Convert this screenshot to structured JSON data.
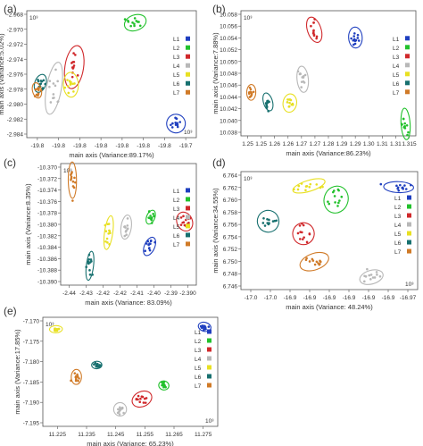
{
  "chart_data": [
    {
      "type": "scatter",
      "panel_label": "(a)",
      "xlabel": "main axis (Variance:89.17%)",
      "ylabel": "main axis (Variance:5.02%)",
      "x_ticks": [
        "-19.8",
        "-19.8",
        "-19.8",
        "-19.8",
        "-19.8",
        "-19.8",
        "-19.8",
        "-19.7"
      ],
      "y_ticks": [
        "-2.968",
        "-2.970",
        "-2.972",
        "-2.974",
        "-2.976",
        "-2.978",
        "-2.980",
        "-2.982",
        "-2.984"
      ],
      "xlim": [
        -19.84,
        -19.74
      ],
      "ylim": [
        -2.9855,
        -2.9675
      ],
      "multiplier_top": "10³",
      "multiplier_bottom": "10³",
      "legend": [
        "L1",
        "L2",
        "L3",
        "L4",
        "L5",
        "L6",
        "L7"
      ],
      "series": [
        {
          "name": "L1",
          "center": [
            -19.752,
            -2.9835
          ],
          "spread": [
            0.0025,
            0.0006
          ]
        },
        {
          "name": "L2",
          "center": [
            -19.776,
            -2.9692
          ],
          "spread": [
            0.003,
            0.0005
          ]
        },
        {
          "name": "L3",
          "center": [
            -19.812,
            -2.9755
          ],
          "spread": [
            0.0025,
            0.0014
          ]
        },
        {
          "name": "L4",
          "center": [
            -19.824,
            -2.9785
          ],
          "spread": [
            0.002,
            0.0017
          ]
        },
        {
          "name": "L5",
          "center": [
            -19.814,
            -2.978
          ],
          "spread": [
            0.002,
            0.0008
          ]
        },
        {
          "name": "L6",
          "center": [
            -19.832,
            -2.9778
          ],
          "spread": [
            0.0015,
            0.0006
          ]
        },
        {
          "name": "L7",
          "center": [
            -19.834,
            -2.9788
          ],
          "spread": [
            0.0012,
            0.0005
          ]
        }
      ]
    },
    {
      "type": "scatter",
      "panel_label": "(b)",
      "xlabel": "main axis (Variance:86.23%)",
      "ylabel": "main axis (Variance:7.88%)",
      "x_ticks": [
        "1.25",
        "1.25",
        "1.26",
        "1.26",
        "1.27",
        "1.27",
        "1.28",
        "1.29",
        "1.29",
        "1.30",
        "1.31",
        "1.31",
        "1.315"
      ],
      "y_ticks": [
        "10.058",
        "10.056",
        "10.054",
        "10.052",
        "10.050",
        "10.048",
        "10.046",
        "10.044",
        "10.042",
        "10.040",
        "10.038"
      ],
      "xlim": [
        1.248,
        1.316
      ],
      "ylim": [
        10.0375,
        10.0585
      ],
      "multiplier_top": "10³",
      "legend": [
        "L1",
        "L2",
        "L3",
        "L4",
        "L5",
        "L6",
        "L7"
      ],
      "series": [
        {
          "name": "L1",
          "center": [
            1.2925,
            10.054
          ],
          "spread": [
            0.0012,
            0.0008
          ]
        },
        {
          "name": "L2",
          "center": [
            1.312,
            10.0395
          ],
          "spread": [
            0.0008,
            0.0012
          ]
        },
        {
          "name": "L3",
          "center": [
            1.2765,
            10.0553
          ],
          "spread": [
            0.0012,
            0.001
          ]
        },
        {
          "name": "L4",
          "center": [
            1.272,
            10.047
          ],
          "spread": [
            0.001,
            0.001
          ]
        },
        {
          "name": "L5",
          "center": [
            1.267,
            10.043
          ],
          "spread": [
            0.0012,
            0.0007
          ]
        },
        {
          "name": "L6",
          "center": [
            1.2585,
            10.0432
          ],
          "spread": [
            0.0008,
            0.0007
          ]
        },
        {
          "name": "L7",
          "center": [
            1.252,
            10.0448
          ],
          "spread": [
            0.0008,
            0.0006
          ]
        }
      ]
    },
    {
      "type": "scatter",
      "panel_label": "(c)",
      "xlabel": "main axis (Variance: 83.09%)",
      "ylabel": "main axis (Variance:8.35%)",
      "x_ticks": [
        "-2.44",
        "-2.43",
        "-2.42",
        "-2.42",
        "-2.41",
        "-2.40",
        "-2.39",
        "-2.390"
      ],
      "y_ticks": [
        "-10.370",
        "-10.372",
        "-10.374",
        "-10.376",
        "-10.378",
        "-10.380",
        "-10.382",
        "-10.384",
        "-10.386",
        "-10.388",
        "-10.390"
      ],
      "xlim": [
        -2.446,
        -2.388
      ],
      "ylim": [
        -10.3915,
        -10.3695
      ],
      "multiplier_top": "10³",
      "legend": [
        "L1",
        "L2",
        "L3",
        "L4",
        "L5",
        "L6",
        "L7"
      ],
      "series": [
        {
          "name": "L1",
          "center": [
            -2.408,
            -10.3845
          ],
          "spread": [
            0.001,
            0.0008
          ]
        },
        {
          "name": "L2",
          "center": [
            -2.4075,
            -10.3792
          ],
          "spread": [
            0.0008,
            0.0006
          ]
        },
        {
          "name": "L3",
          "center": [
            -2.393,
            -10.38
          ],
          "spread": [
            0.0015,
            0.0008
          ]
        },
        {
          "name": "L4",
          "center": [
            -2.418,
            -10.381
          ],
          "spread": [
            0.001,
            0.001
          ]
        },
        {
          "name": "L5",
          "center": [
            -2.4255,
            -10.382
          ],
          "spread": [
            0.0008,
            0.0014
          ]
        },
        {
          "name": "L6",
          "center": [
            -2.4335,
            -10.388
          ],
          "spread": [
            0.0007,
            0.0012
          ]
        },
        {
          "name": "L7",
          "center": [
            -2.441,
            -10.3725
          ],
          "spread": [
            0.0008,
            0.0015
          ]
        }
      ]
    },
    {
      "type": "scatter",
      "panel_label": "(d)",
      "xlabel": "main axis (Variance: 48.24%)",
      "ylabel": "main axis (Variance:34.55%)",
      "x_ticks": [
        "-17.0",
        "-17.0",
        "-16.9",
        "-16.9",
        "-16.9",
        "-16.9",
        "-16.9",
        "-16.9",
        "-16.97"
      ],
      "y_ticks": [
        "6.764",
        "6.762",
        "6.760",
        "6.758",
        "6.756",
        "6.754",
        "6.752",
        "6.750",
        "6.748",
        "6.746"
      ],
      "xlim": [
        -17.02,
        -16.955
      ],
      "ylim": [
        6.7455,
        6.7645
      ],
      "multiplier_top": "10³",
      "multiplier_bottom": "10³",
      "legend": [
        "L1",
        "L2",
        "L3",
        "L4",
        "L5",
        "L6",
        "L7"
      ],
      "series": [
        {
          "name": "L1",
          "center": [
            -16.962,
            6.762
          ],
          "spread": [
            0.0025,
            0.0004
          ]
        },
        {
          "name": "L2",
          "center": [
            -16.985,
            6.76
          ],
          "spread": [
            0.002,
            0.001
          ]
        },
        {
          "name": "L3",
          "center": [
            -16.997,
            6.7545
          ],
          "spread": [
            0.0018,
            0.0008
          ]
        },
        {
          "name": "L4",
          "center": [
            -16.972,
            6.7475
          ],
          "spread": [
            0.002,
            0.0005
          ]
        },
        {
          "name": "L5",
          "center": [
            -16.995,
            6.7622
          ],
          "spread": [
            0.0028,
            0.0004
          ]
        },
        {
          "name": "L6",
          "center": [
            -17.01,
            6.7565
          ],
          "spread": [
            0.0018,
            0.0008
          ]
        },
        {
          "name": "L7",
          "center": [
            -16.993,
            6.75
          ],
          "spread": [
            0.0025,
            0.0006
          ]
        }
      ]
    },
    {
      "type": "scatter",
      "panel_label": "(e)",
      "xlabel": "main axis (Variance: 65.23%)",
      "ylabel": "main axis (Variance:17.85%)",
      "x_ticks": [
        "11.225",
        "11.235",
        "11.245",
        "11.255",
        "11.265",
        "11.275"
      ],
      "y_ticks": [
        "-7.170",
        "-7.175",
        "-7.180",
        "-7.185",
        "-7.190",
        "-7.195"
      ],
      "xlim": [
        11.221,
        11.281
      ],
      "ylim": [
        -7.1975,
        -7.1655
      ],
      "multiplier_top": "10³",
      "multiplier_bottom": "10³",
      "legend": [
        "L1",
        "L2",
        "L3",
        "L4",
        "L5",
        "L6",
        "L7"
      ],
      "series": [
        {
          "name": "L1",
          "center": [
            11.2765,
            -7.1683
          ],
          "spread": [
            0.001,
            0.0006
          ]
        },
        {
          "name": "L2",
          "center": [
            11.2625,
            -7.1855
          ],
          "spread": [
            0.0008,
            0.0006
          ]
        },
        {
          "name": "L3",
          "center": [
            11.255,
            -7.1895
          ],
          "spread": [
            0.0016,
            0.001
          ]
        },
        {
          "name": "L4",
          "center": [
            11.2475,
            -7.1925
          ],
          "spread": [
            0.001,
            0.0009
          ]
        },
        {
          "name": "L5",
          "center": [
            11.2255,
            -7.169
          ],
          "spread": [
            0.001,
            0.0004
          ]
        },
        {
          "name": "L6",
          "center": [
            11.2395,
            -7.1795
          ],
          "spread": [
            0.0008,
            0.0005
          ]
        },
        {
          "name": "L7",
          "center": [
            11.2325,
            -7.183
          ],
          "spread": [
            0.0008,
            0.001
          ]
        }
      ]
    }
  ],
  "series_colors": {
    "L1": "#1f3fbf",
    "L2": "#22c12c",
    "L3": "#d0282b",
    "L4": "#b8b8b8",
    "L5": "#e8e022",
    "L6": "#17706f",
    "L7": "#d07a27"
  }
}
